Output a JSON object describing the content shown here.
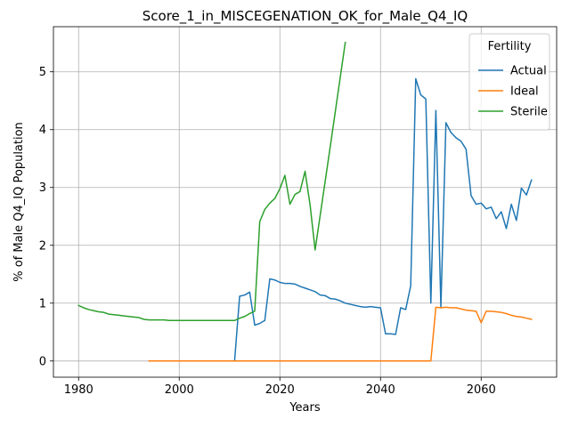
{
  "chart_data": {
    "type": "line",
    "title": "Score_1_in_MISCEGENATION_OK_for_Male_Q4_IQ",
    "xlabel": "Years",
    "ylabel": "% of Male Q4_IQ Population",
    "xlim": [
      1975,
      2075
    ],
    "ylim": [
      -0.28,
      5.78
    ],
    "xticks": [
      1980,
      2000,
      2020,
      2040,
      2060
    ],
    "yticks": [
      0,
      1,
      2,
      3,
      4,
      5
    ],
    "grid": true,
    "legend": {
      "title": "Fertility",
      "placement": "top-right"
    },
    "series": [
      {
        "name": "Actual",
        "color": "#1f77b4",
        "x": [
          2008,
          2009,
          2010,
          2011,
          2012,
          2013,
          2014,
          2015,
          2016,
          2017,
          2018,
          2019,
          2020,
          2021,
          2022,
          2023,
          2024,
          2025,
          2026,
          2027,
          2028,
          2029,
          2030,
          2031,
          2032,
          2033,
          2034,
          2035,
          2036,
          2037,
          2038,
          2039,
          2040,
          2041,
          2042,
          2043,
          2044,
          2045,
          2046,
          2047,
          2048,
          2049,
          2050,
          2051,
          2052,
          2053,
          2054,
          2055,
          2056,
          2057,
          2058,
          2059,
          2060,
          2061,
          2062,
          2063,
          2064,
          2065,
          2066,
          2067,
          2068,
          2069,
          2070
        ],
        "y": [
          0,
          0,
          0,
          0,
          1.12,
          1.14,
          1.19,
          0.62,
          0.65,
          0.7,
          1.42,
          1.4,
          1.36,
          1.34,
          1.34,
          1.33,
          1.29,
          1.26,
          1.23,
          1.2,
          1.14,
          1.13,
          1.08,
          1.07,
          1.04,
          1.0,
          0.98,
          0.96,
          0.94,
          0.93,
          0.94,
          0.93,
          0.92,
          0.47,
          0.47,
          0.46,
          0.92,
          0.89,
          1.3,
          4.88,
          4.6,
          4.53,
          1.0,
          4.33,
          0.93,
          4.12,
          3.95,
          3.86,
          3.8,
          3.66,
          2.86,
          2.71,
          2.73,
          2.63,
          2.66,
          2.46,
          2.58,
          2.29,
          2.71,
          2.43,
          2.99,
          2.87,
          3.13
        ]
      },
      {
        "name": "Ideal",
        "color": "#ff7f0e",
        "x": [
          1994,
          2000,
          2010,
          2020,
          2030,
          2040,
          2045,
          2050,
          2051,
          2052,
          2053,
          2054,
          2055,
          2056,
          2057,
          2058,
          2059,
          2060,
          2061,
          2062,
          2063,
          2064,
          2065,
          2066,
          2067,
          2068,
          2069,
          2070
        ],
        "y": [
          0,
          0,
          0,
          0,
          0,
          0,
          0,
          0,
          0.93,
          0.92,
          0.93,
          0.92,
          0.92,
          0.9,
          0.88,
          0.87,
          0.86,
          0.66,
          0.86,
          0.86,
          0.85,
          0.84,
          0.82,
          0.79,
          0.77,
          0.76,
          0.74,
          0.72
        ]
      },
      {
        "name": "Sterile",
        "color": "#2ca02c",
        "x": [
          1980,
          1981,
          1982,
          1983,
          1984,
          1985,
          1986,
          1987,
          1988,
          1989,
          1990,
          1991,
          1992,
          1993,
          1994,
          1995,
          1996,
          1997,
          1998,
          1999,
          2000,
          2005,
          2010,
          2011,
          2012,
          2013,
          2014,
          2015,
          2016,
          2017,
          2018,
          2019,
          2020,
          2021,
          2022,
          2023,
          2024,
          2025,
          2026,
          2027,
          2030,
          2033
        ],
        "y": [
          0.96,
          0.92,
          0.89,
          0.87,
          0.85,
          0.84,
          0.81,
          0.8,
          0.79,
          0.78,
          0.77,
          0.76,
          0.75,
          0.72,
          0.71,
          0.71,
          0.71,
          0.71,
          0.7,
          0.7,
          0.7,
          0.7,
          0.7,
          0.7,
          0.74,
          0.77,
          0.82,
          0.86,
          2.41,
          2.62,
          2.73,
          2.81,
          2.98,
          3.21,
          2.71,
          2.88,
          2.93,
          3.28,
          2.7,
          1.92,
          3.7,
          5.51
        ]
      }
    ]
  }
}
